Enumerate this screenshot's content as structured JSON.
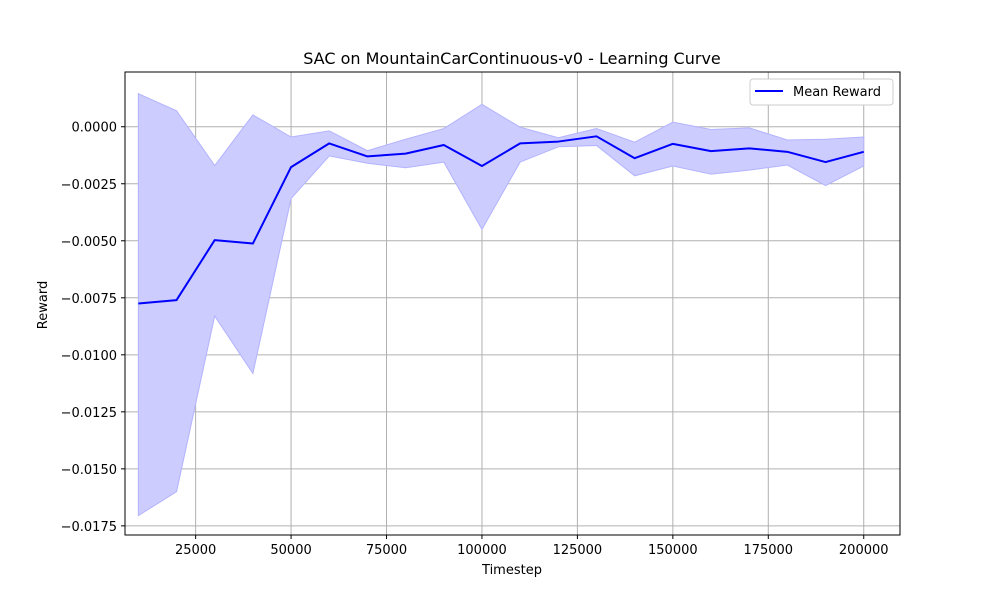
{
  "chart_data": {
    "type": "line",
    "title": "SAC on MountainCarContinuous-v0 - Learning Curve",
    "xlabel": "Timestep",
    "ylabel": "Reward",
    "xlim": [
      6500,
      209500
    ],
    "ylim": [
      -0.0179,
      0.0024
    ],
    "x_ticks": [
      25000,
      50000,
      75000,
      100000,
      125000,
      150000,
      175000,
      200000
    ],
    "x_tick_labels": [
      "25000",
      "50000",
      "75000",
      "100000",
      "125000",
      "150000",
      "175000",
      "200000"
    ],
    "y_ticks": [
      0.0,
      -0.0025,
      -0.005,
      -0.0075,
      -0.01,
      -0.0125,
      -0.015,
      -0.0175
    ],
    "y_tick_labels": [
      "0.0000",
      "−0.0025",
      "−0.0050",
      "−0.0075",
      "−0.0100",
      "−0.0125",
      "−0.0150",
      "−0.0175"
    ],
    "grid": true,
    "legend_position": "top-right",
    "x": [
      10000,
      20000,
      30000,
      40000,
      50000,
      60000,
      70000,
      80000,
      90000,
      100000,
      110000,
      120000,
      130000,
      140000,
      150000,
      160000,
      170000,
      180000,
      190000,
      200000
    ],
    "series": [
      {
        "name": "Mean Reward",
        "color": "#0000ff",
        "values": [
          -0.00775,
          -0.0076,
          -0.00497,
          -0.00512,
          -0.00177,
          -0.00073,
          -0.0013,
          -0.00118,
          -0.0008,
          -0.00172,
          -0.00073,
          -0.00065,
          -0.00042,
          -0.00138,
          -0.00075,
          -0.00107,
          -0.00095,
          -0.0011,
          -0.00155,
          -0.0011
        ],
        "band_upper": [
          0.00145,
          0.0007,
          -0.0017,
          0.00052,
          -0.00045,
          -0.00018,
          -0.00105,
          -0.00055,
          -8e-05,
          0.00098,
          -2e-05,
          -0.00048,
          -8e-05,
          -0.00068,
          0.0002,
          -0.00012,
          -5e-05,
          -0.00058,
          -0.00055,
          -0.00045
        ],
        "band_lower": [
          -0.01705,
          -0.016,
          -0.0083,
          -0.01082,
          -0.00315,
          -0.00128,
          -0.0016,
          -0.0018,
          -0.00155,
          -0.0045,
          -0.00155,
          -0.00088,
          -0.00082,
          -0.00215,
          -0.00172,
          -0.00208,
          -0.0019,
          -0.00168,
          -0.00258,
          -0.00172
        ],
        "band_color": "#ccccff"
      }
    ]
  }
}
